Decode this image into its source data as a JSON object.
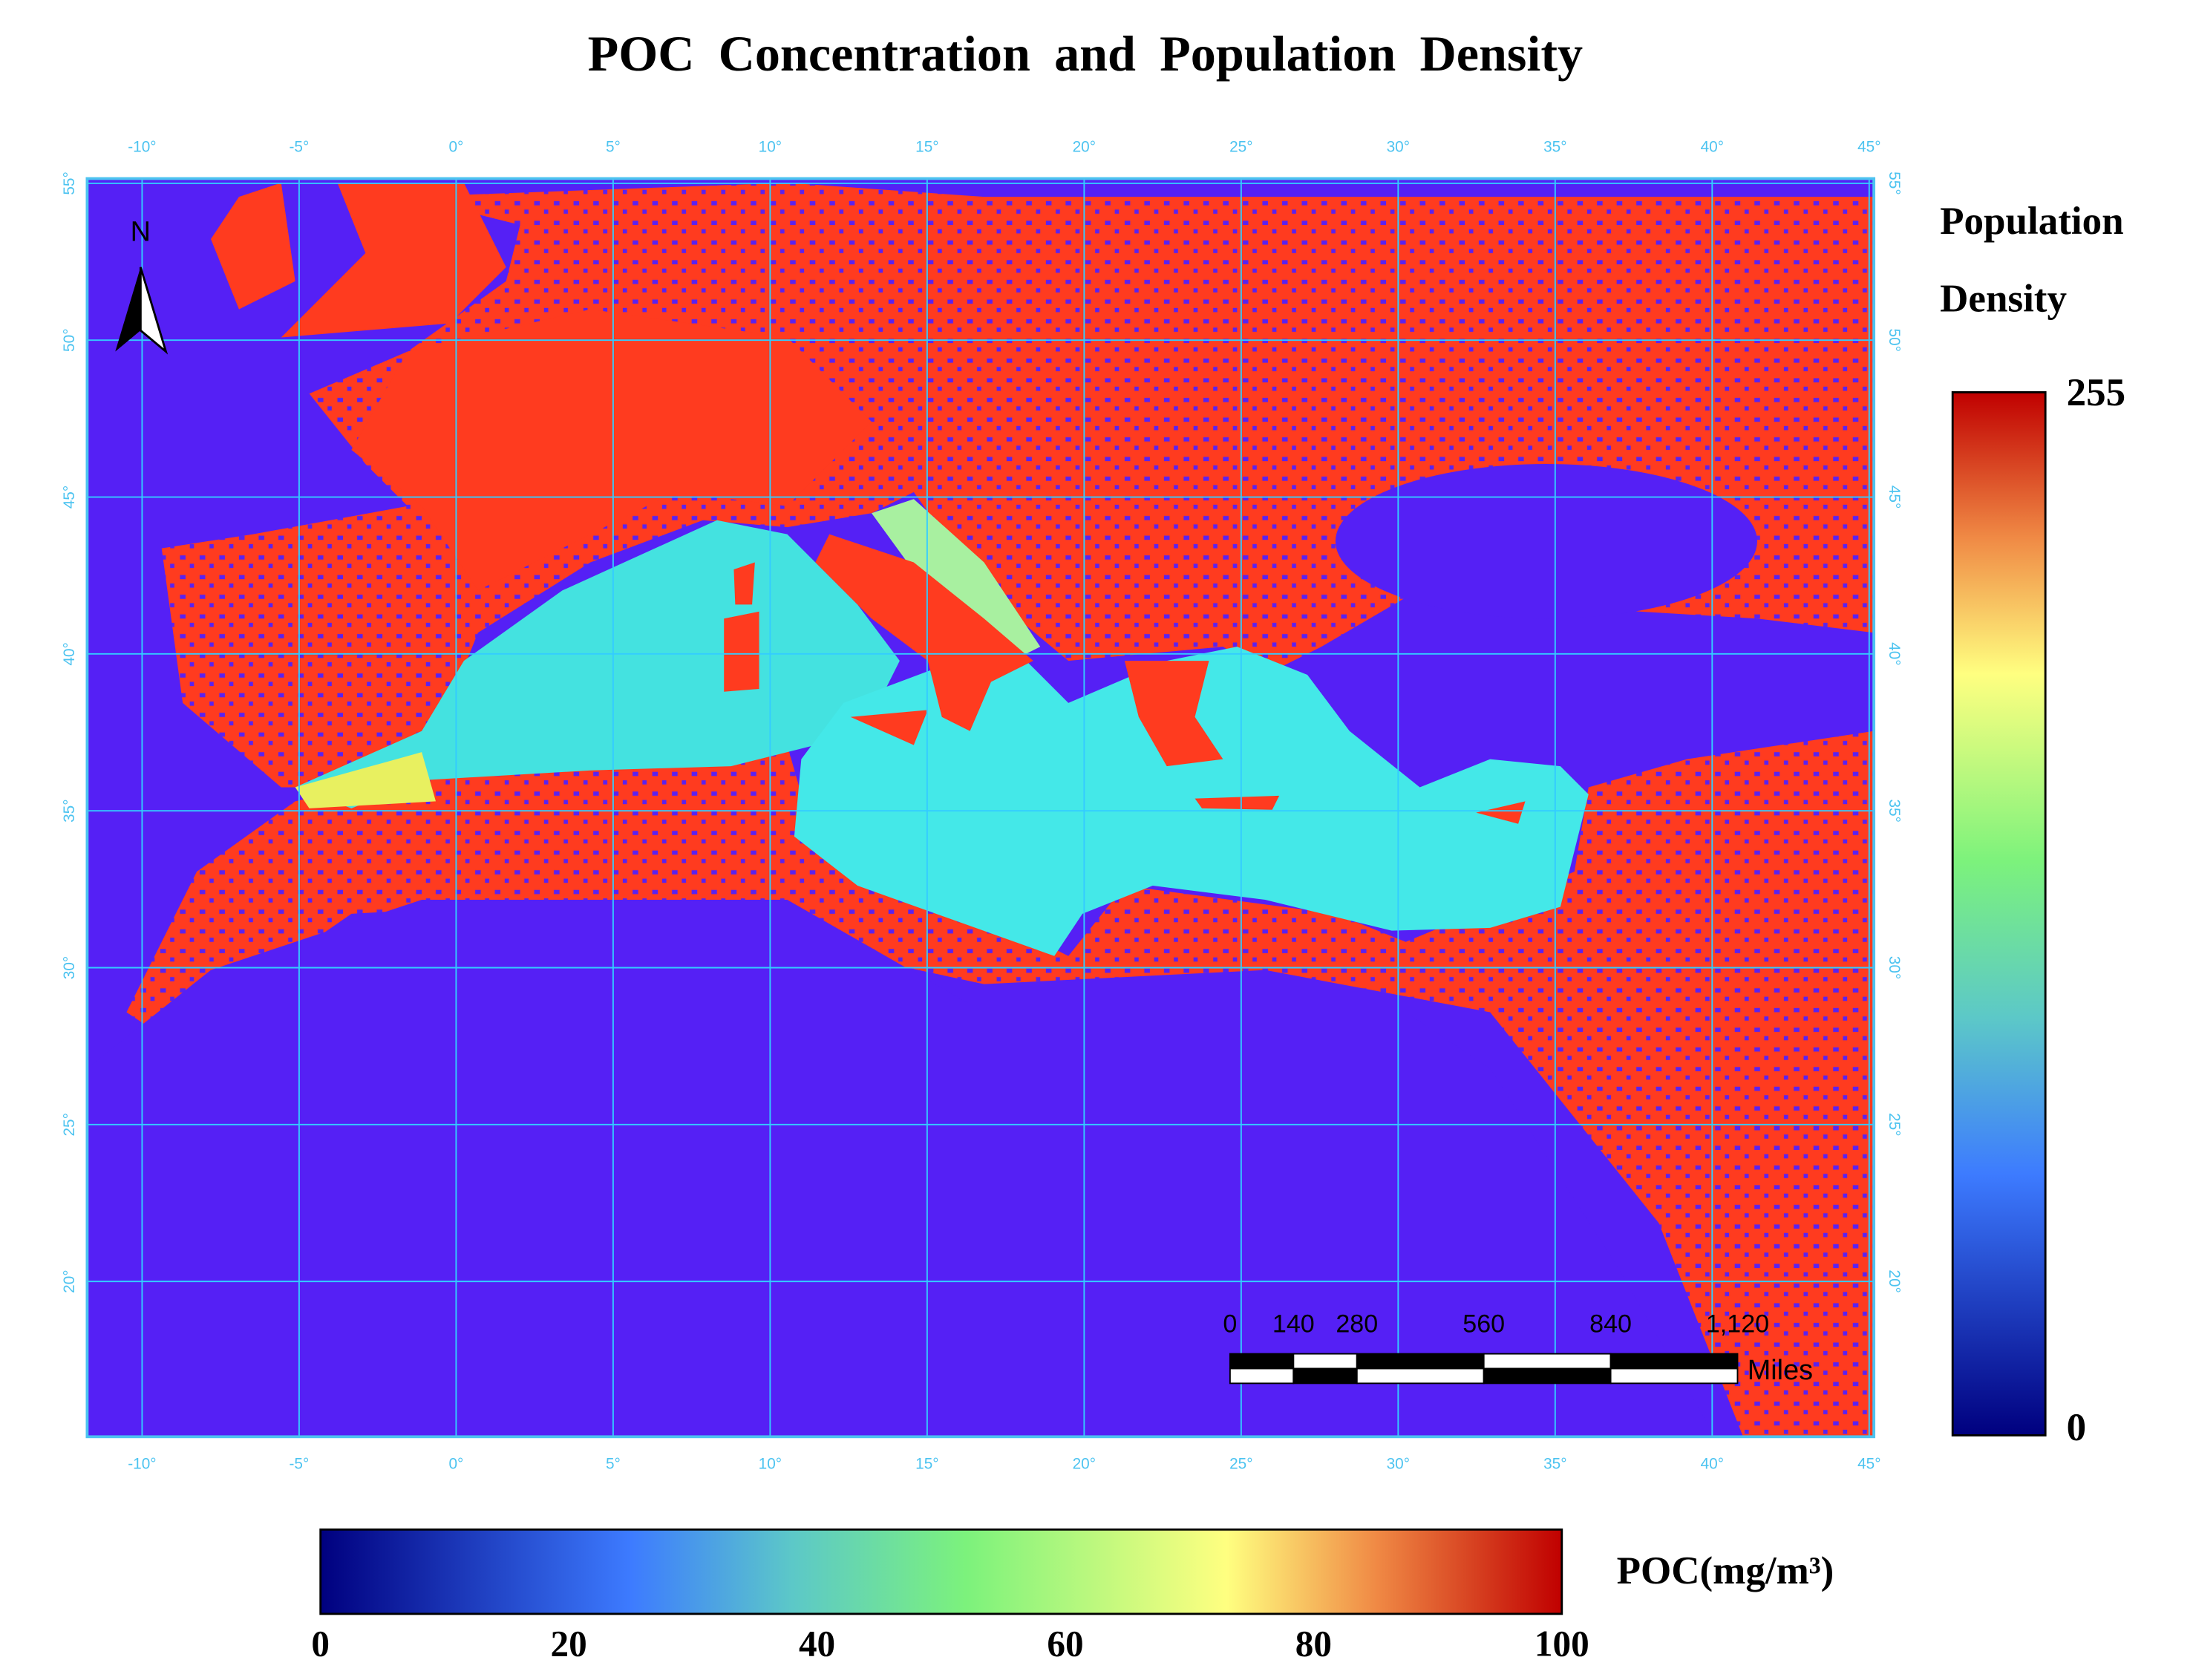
{
  "title": "POC Concentration and Population Density",
  "map": {
    "lon_extent": [
      -11.75,
      45.15
    ],
    "lat_extent": [
      15.05,
      55.15
    ],
    "lon_ticks": [
      {
        "value": -10,
        "label": "-10°"
      },
      {
        "value": -5,
        "label": "-5°"
      },
      {
        "value": 0,
        "label": "0°"
      },
      {
        "value": 5,
        "label": "5°"
      },
      {
        "value": 10,
        "label": "10°"
      },
      {
        "value": 15,
        "label": "15°"
      },
      {
        "value": 20,
        "label": "20°"
      },
      {
        "value": 25,
        "label": "25°"
      },
      {
        "value": 30,
        "label": "30°"
      },
      {
        "value": 35,
        "label": "35°"
      },
      {
        "value": 40,
        "label": "40°"
      },
      {
        "value": 45,
        "label": "45°"
      }
    ],
    "lat_ticks": [
      {
        "value": 20,
        "label": "20°"
      },
      {
        "value": 25,
        "label": "25°"
      },
      {
        "value": 30,
        "label": "30°"
      },
      {
        "value": 35,
        "label": "35°"
      },
      {
        "value": 40,
        "label": "40°"
      },
      {
        "value": 45,
        "label": "45°"
      },
      {
        "value": 50,
        "label": "50°"
      },
      {
        "value": 55,
        "label": "55°"
      }
    ],
    "north_label": "N",
    "scale_bar": {
      "ticks": [
        0,
        140,
        280,
        560,
        840,
        {
          "value": 1120,
          "label": "1,120"
        }
      ],
      "unit": "Miles"
    }
  },
  "population_density": {
    "title_lines": [
      "Population",
      "Density"
    ],
    "ticks": [
      0,
      255
    ]
  },
  "poc": {
    "label": "POC(mg/m³)",
    "ticks": [
      0,
      20,
      40,
      60,
      80,
      100
    ]
  }
}
